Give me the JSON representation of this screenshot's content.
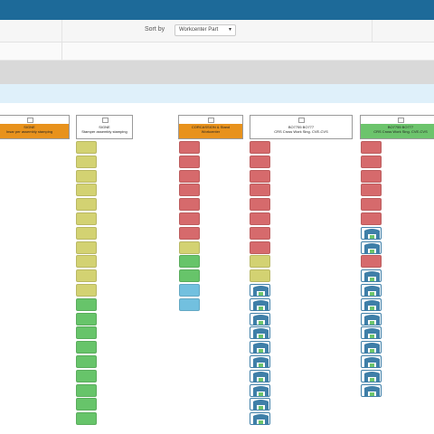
{
  "toolbar": {
    "sort_label": "Sort by",
    "sort_value": "Workcenter Part",
    "sort_icon": "caret-down-icon"
  },
  "colors": {
    "topbar": "#1d6a99",
    "header_orange": "#e8921c",
    "header_green": "#6cc46c",
    "red": "#d66a6c",
    "yellow": "#d3d272",
    "green": "#67c46a",
    "blue": "#72c0df",
    "badge_blue": "#3f7fa8"
  },
  "columns": [
    {
      "id": "col1",
      "header_band": "orange",
      "line1": "SIGNE",
      "line2": "Insar per assembly stamping",
      "tiles": []
    },
    {
      "id": "col2",
      "header_band": "none",
      "line1": "SIGNE",
      "line2": "Stamper assembly stamping",
      "tiles": [
        "yellow",
        "yellow",
        "yellow",
        "yellow",
        "yellow",
        "yellow",
        "yellow",
        "yellow",
        "yellow",
        "yellow",
        "yellow",
        "green",
        "green",
        "green",
        "green",
        "green",
        "green",
        "green",
        "green",
        "green",
        "green",
        "green"
      ]
    },
    {
      "id": "col3",
      "header_band": "orange",
      "line1": "CORCASSION & Stand",
      "line2": "Workcenter",
      "tiles": [
        "red",
        "red",
        "red",
        "red",
        "red",
        "red",
        "red",
        "yellow",
        "green",
        "green",
        "blue",
        "blue"
      ]
    },
    {
      "id": "col4",
      "header_band": "none",
      "line1": "BO7755 BO777",
      "line2": "CRS Cross Work Sing. CVE-CVS",
      "tiles": [
        "red",
        "red",
        "red",
        "red",
        "red",
        "red",
        "red",
        "red",
        "yellow",
        "yellow",
        "badge",
        "badge",
        "badge",
        "badge",
        "badge",
        "badge",
        "badge",
        "badge",
        "badge",
        "badge"
      ]
    },
    {
      "id": "col5",
      "header_band": "green",
      "line1": "BO7755 BO777",
      "line2": "CRS Cross Work Sing. CVE-CVS",
      "tiles": [
        "red",
        "red",
        "red",
        "red",
        "red",
        "red",
        "badge",
        "badge",
        "red",
        "badge",
        "badge",
        "badge",
        "badge",
        "badge",
        "badge",
        "badge",
        "badge",
        "badge"
      ]
    }
  ]
}
